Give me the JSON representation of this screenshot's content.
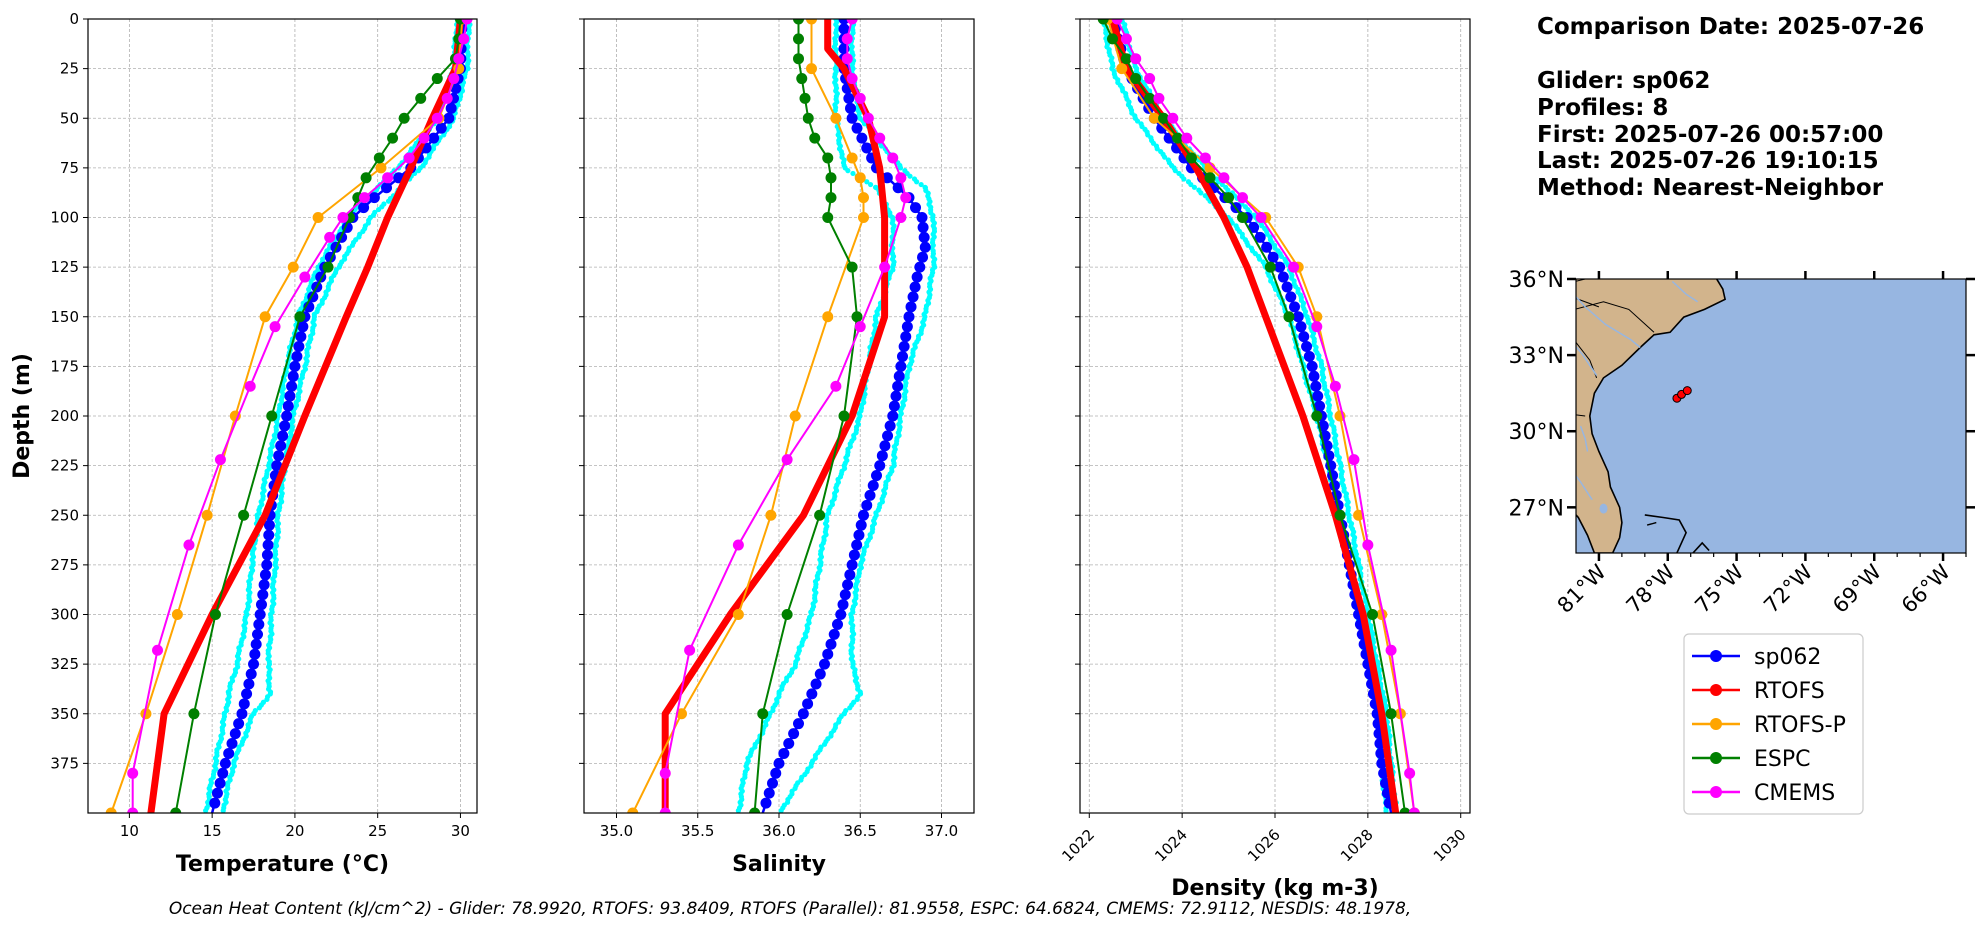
{
  "info": {
    "comparison_date": "Comparison Date: 2025-07-26",
    "glider": "Glider: sp062",
    "profiles": "Profiles: 8",
    "first": "First: 2025-07-26 00:57:00",
    "last": "Last: 2025-07-26 19:10:15",
    "method": "Method: Nearest-Neighbor"
  },
  "footer": "Ocean Heat Content (kJ/cm^2) - Glider: 78.9920,  RTOFS: 93.8409,  RTOFS (Parallel): 81.9558,  ESPC: 64.6824,  CMEMS: 72.9112,  NESDIS: 48.1978,",
  "legend": [
    {
      "name": "sp062",
      "color": "#0000ff"
    },
    {
      "name": "RTOFS",
      "color": "#ff0000"
    },
    {
      "name": "RTOFS-P",
      "color": "#ffa500"
    },
    {
      "name": "ESPC",
      "color": "#008000"
    },
    {
      "name": "CMEMS",
      "color": "#ff00ff"
    }
  ],
  "chart_data": [
    {
      "type": "line",
      "xlabel": "Temperature (°C)",
      "ylabel": "Depth (m)",
      "xlim": [
        7.5,
        31
      ],
      "ylim": [
        400,
        0
      ],
      "xticks": [
        10,
        15,
        20,
        25,
        30
      ],
      "yticks": [
        0,
        25,
        50,
        75,
        100,
        125,
        150,
        175,
        200,
        225,
        250,
        275,
        300,
        325,
        350,
        375
      ],
      "grid": true,
      "glider_band_color": "#00ffff",
      "glider_band": {
        "depth": [
          0,
          25,
          50,
          75,
          100,
          125,
          150,
          175,
          200,
          225,
          250,
          275,
          300,
          325,
          340,
          350,
          375,
          400
        ],
        "left": [
          29.8,
          29.6,
          28.6,
          26.2,
          23.2,
          21.4,
          20.2,
          19.5,
          19.0,
          18.4,
          17.8,
          17.4,
          17.1,
          16.5,
          16.0,
          15.8,
          15.2,
          14.6
        ],
        "right": [
          30.5,
          30.4,
          29.6,
          27.6,
          24.6,
          22.6,
          21.2,
          20.6,
          19.9,
          19.4,
          19.0,
          18.8,
          18.6,
          18.4,
          18.5,
          17.5,
          16.3,
          15.6
        ]
      },
      "series": [
        {
          "name": "sp062",
          "color": "#0000ff",
          "style": "glider",
          "depth": [
            0,
            25,
            50,
            75,
            90,
            100,
            125,
            150,
            175,
            200,
            225,
            250,
            275,
            300,
            325,
            350,
            375,
            400
          ],
          "values": [
            30.1,
            30.0,
            29.3,
            27.0,
            24.8,
            23.5,
            21.8,
            20.6,
            20.0,
            19.5,
            18.9,
            18.5,
            18.3,
            17.9,
            17.5,
            16.8,
            15.8,
            15.0
          ]
        },
        {
          "name": "RTOFS",
          "color": "#ff0000",
          "style": "thick",
          "depth": [
            0,
            25,
            50,
            75,
            100,
            125,
            150,
            200,
            250,
            300,
            350,
            400
          ],
          "values": [
            30.0,
            29.7,
            28.3,
            27.0,
            25.6,
            24.4,
            23.1,
            20.6,
            18.2,
            15.0,
            12.1,
            11.3
          ]
        },
        {
          "name": "RTOFS-P",
          "color": "#ffa500",
          "style": "marker",
          "depth": [
            0,
            25,
            50,
            75,
            100,
            125,
            150,
            200,
            250,
            300,
            350,
            400
          ],
          "values": [
            30.1,
            29.9,
            28.7,
            25.2,
            21.4,
            19.9,
            18.2,
            16.4,
            14.7,
            12.9,
            11.0,
            8.9
          ]
        },
        {
          "name": "ESPC",
          "color": "#008000",
          "style": "marker",
          "depth": [
            0,
            10,
            20,
            30,
            40,
            50,
            60,
            70,
            80,
            90,
            100,
            125,
            150,
            200,
            250,
            300,
            350,
            400
          ],
          "values": [
            30.0,
            29.9,
            29.7,
            28.6,
            27.6,
            26.6,
            25.9,
            25.1,
            24.3,
            23.8,
            23.3,
            22.0,
            20.3,
            18.6,
            16.9,
            15.2,
            13.9,
            12.8
          ]
        },
        {
          "name": "CMEMS",
          "color": "#ff00ff",
          "style": "marker",
          "depth": [
            0,
            10,
            20,
            30,
            40,
            50,
            60,
            70,
            80,
            90,
            100,
            110,
            130,
            155,
            185,
            222,
            265,
            318,
            380,
            400
          ],
          "values": [
            30.4,
            30.2,
            29.9,
            29.6,
            29.2,
            28.6,
            27.8,
            26.9,
            25.6,
            24.2,
            22.9,
            22.1,
            20.6,
            18.8,
            17.3,
            15.5,
            13.6,
            11.7,
            10.2,
            10.2
          ]
        }
      ]
    },
    {
      "type": "line",
      "xlabel": "Salinity",
      "xlim": [
        34.8,
        37.2
      ],
      "ylim": [
        400,
        0
      ],
      "xticks": [
        35.0,
        35.5,
        36.0,
        36.5,
        37.0
      ],
      "grid": true,
      "glider_band_color": "#00ffff",
      "glider_band": {
        "depth": [
          0,
          25,
          50,
          75,
          85,
          100,
          125,
          150,
          175,
          200,
          225,
          250,
          275,
          300,
          325,
          340,
          350,
          375,
          400
        ],
        "left": [
          36.35,
          36.35,
          36.35,
          36.4,
          36.6,
          36.7,
          36.7,
          36.6,
          36.55,
          36.5,
          36.4,
          36.3,
          36.25,
          36.2,
          36.1,
          36.0,
          35.95,
          35.8,
          35.75
        ],
        "right": [
          36.45,
          36.45,
          36.5,
          36.75,
          36.9,
          36.95,
          36.95,
          36.9,
          36.8,
          36.75,
          36.7,
          36.6,
          36.5,
          36.45,
          36.45,
          36.5,
          36.4,
          36.2,
          36.0
        ]
      },
      "series": [
        {
          "name": "sp062",
          "color": "#0000ff",
          "style": "glider",
          "depth": [
            0,
            25,
            50,
            75,
            90,
            100,
            115,
            130,
            150,
            175,
            200,
            225,
            250,
            275,
            300,
            325,
            350,
            375,
            400
          ],
          "values": [
            36.4,
            36.4,
            36.45,
            36.6,
            36.8,
            36.88,
            36.9,
            36.85,
            36.8,
            36.75,
            36.7,
            36.62,
            36.52,
            36.45,
            36.38,
            36.28,
            36.15,
            36.0,
            35.9
          ]
        },
        {
          "name": "RTOFS",
          "color": "#ff0000",
          "style": "thick",
          "depth": [
            0,
            15,
            25,
            50,
            75,
            100,
            125,
            150,
            200,
            250,
            300,
            350,
            400
          ],
          "values": [
            36.3,
            36.3,
            36.4,
            36.55,
            36.62,
            36.65,
            36.65,
            36.65,
            36.45,
            36.15,
            35.7,
            35.3,
            35.3
          ]
        },
        {
          "name": "RTOFS-P",
          "color": "#ffa500",
          "style": "marker",
          "depth": [
            0,
            25,
            50,
            70,
            80,
            90,
            100,
            150,
            200,
            250,
            300,
            350,
            400
          ],
          "values": [
            36.2,
            36.2,
            36.35,
            36.45,
            36.5,
            36.52,
            36.52,
            36.3,
            36.1,
            35.95,
            35.75,
            35.4,
            35.1
          ]
        },
        {
          "name": "ESPC",
          "color": "#008000",
          "style": "marker",
          "depth": [
            0,
            10,
            20,
            30,
            40,
            50,
            60,
            70,
            80,
            90,
            100,
            125,
            150,
            200,
            250,
            300,
            350,
            400
          ],
          "values": [
            36.12,
            36.12,
            36.12,
            36.14,
            36.16,
            36.18,
            36.22,
            36.3,
            36.32,
            36.32,
            36.3,
            36.45,
            36.48,
            36.4,
            36.25,
            36.05,
            35.9,
            35.85
          ]
        },
        {
          "name": "CMEMS",
          "color": "#ff00ff",
          "style": "marker",
          "depth": [
            0,
            10,
            20,
            30,
            40,
            50,
            60,
            70,
            80,
            90,
            100,
            125,
            155,
            185,
            222,
            265,
            318,
            380,
            400
          ],
          "values": [
            36.45,
            36.42,
            36.42,
            36.45,
            36.5,
            36.55,
            36.62,
            36.7,
            36.75,
            36.78,
            36.75,
            36.65,
            36.5,
            36.35,
            36.05,
            35.75,
            35.45,
            35.3,
            35.3
          ]
        }
      ]
    },
    {
      "type": "line",
      "xlabel": "Density (kg m-3)",
      "xlim": [
        1021.8,
        1030.2
      ],
      "ylim": [
        400,
        0
      ],
      "xticks": [
        1022,
        1024,
        1026,
        1028,
        1030
      ],
      "grid": true,
      "glider_band_color": "#00ffff",
      "glider_band": {
        "depth": [
          0,
          25,
          50,
          75,
          100,
          125,
          150,
          175,
          200,
          250,
          300,
          350,
          400
        ],
        "left": [
          1022.3,
          1022.5,
          1023.0,
          1023.8,
          1025.0,
          1025.8,
          1026.3,
          1026.6,
          1026.9,
          1027.4,
          1027.8,
          1028.2,
          1028.4
        ],
        "right": [
          1022.7,
          1023.0,
          1023.6,
          1024.5,
          1025.6,
          1026.3,
          1026.7,
          1027.0,
          1027.2,
          1027.6,
          1028.0,
          1028.4,
          1028.6
        ]
      },
      "series": [
        {
          "name": "sp062",
          "color": "#0000ff",
          "style": "glider",
          "depth": [
            0,
            25,
            50,
            75,
            100,
            125,
            150,
            175,
            200,
            225,
            250,
            275,
            300,
            325,
            350,
            375,
            400
          ],
          "values": [
            1022.5,
            1022.8,
            1023.4,
            1024.2,
            1025.4,
            1026.1,
            1026.5,
            1026.8,
            1027.0,
            1027.2,
            1027.4,
            1027.6,
            1027.8,
            1028.0,
            1028.2,
            1028.3,
            1028.5
          ]
        },
        {
          "name": "RTOFS",
          "color": "#ff0000",
          "style": "thick",
          "depth": [
            0,
            25,
            50,
            75,
            100,
            125,
            150,
            200,
            250,
            300,
            350,
            400
          ],
          "values": [
            1022.5,
            1022.8,
            1023.6,
            1024.3,
            1024.9,
            1025.4,
            1025.8,
            1026.6,
            1027.3,
            1027.9,
            1028.3,
            1028.6
          ]
        },
        {
          "name": "RTOFS-P",
          "color": "#ffa500",
          "style": "marker",
          "depth": [
            0,
            25,
            50,
            75,
            100,
            125,
            150,
            200,
            250,
            300,
            350,
            400
          ],
          "values": [
            1022.4,
            1022.7,
            1023.4,
            1024.6,
            1025.8,
            1026.5,
            1026.9,
            1027.4,
            1027.8,
            1028.3,
            1028.7,
            1029.0
          ]
        },
        {
          "name": "ESPC",
          "color": "#008000",
          "style": "marker",
          "depth": [
            0,
            10,
            20,
            30,
            40,
            50,
            60,
            70,
            80,
            90,
            100,
            125,
            150,
            200,
            250,
            300,
            350,
            400
          ],
          "values": [
            1022.3,
            1022.5,
            1022.8,
            1023.0,
            1023.3,
            1023.6,
            1023.9,
            1024.2,
            1024.6,
            1025.0,
            1025.3,
            1025.9,
            1026.3,
            1026.9,
            1027.4,
            1028.1,
            1028.5,
            1028.8
          ]
        },
        {
          "name": "CMEMS",
          "color": "#ff00ff",
          "style": "marker",
          "depth": [
            0,
            10,
            20,
            30,
            40,
            50,
            60,
            70,
            80,
            90,
            100,
            125,
            155,
            185,
            222,
            265,
            318,
            380,
            400
          ],
          "values": [
            1022.6,
            1022.8,
            1023.0,
            1023.3,
            1023.5,
            1023.8,
            1024.1,
            1024.5,
            1024.9,
            1025.3,
            1025.7,
            1026.4,
            1026.9,
            1027.3,
            1027.7,
            1028.0,
            1028.5,
            1028.9,
            1029.0
          ]
        }
      ]
    },
    {
      "type": "map",
      "lat_ticks": [
        "36°N",
        "33°N",
        "30°N",
        "27°N"
      ],
      "lat_values": [
        36,
        33,
        30,
        27
      ],
      "lon_ticks": [
        "81°W",
        "78°W",
        "75°W",
        "72°W",
        "69°W",
        "66°W"
      ],
      "lon_values": [
        -81,
        -78,
        -75,
        -72,
        -69,
        -66
      ],
      "extent": {
        "lon_min": -82,
        "lon_max": -65,
        "lat_min": 25.2,
        "lat_max": 36.0
      },
      "land_color": "#d2b48c",
      "ocean_color": "#97b6e1",
      "glider_track": [
        [
          -77.6,
          31.3
        ],
        [
          -77.4,
          31.45
        ],
        [
          -77.15,
          31.6
        ]
      ]
    }
  ]
}
